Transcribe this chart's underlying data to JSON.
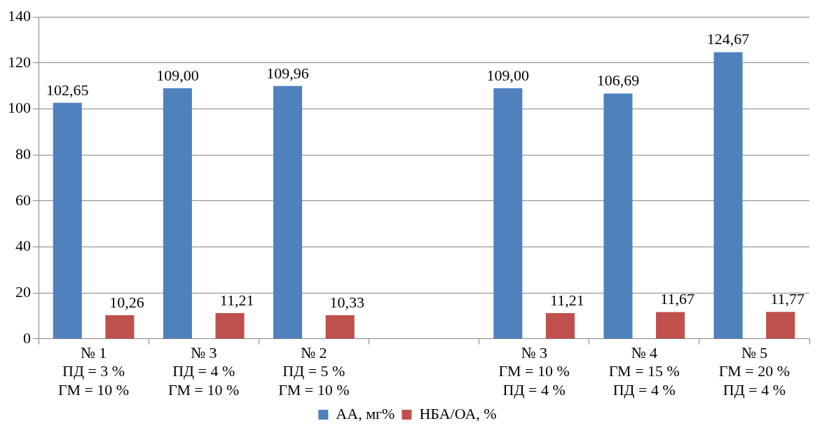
{
  "chart_data": {
    "type": "bar",
    "categories": [
      "№ 1\nПД = 3 %\nГМ = 10 %",
      "№ 3\nПД = 4 %\nГМ = 10 %",
      "№ 2\nПД = 5 %\nГМ = 10 %",
      null,
      "№ 3\nГМ = 10 %\nПД = 4 %",
      "№ 4\nГМ = 15 %\nПД = 4 %",
      "№ 5\nГМ = 20 %\nПД = 4 %"
    ],
    "series": [
      {
        "name": "АА, мг%",
        "color": "#4f81bd",
        "values": [
          102.65,
          109.0,
          109.96,
          null,
          109.0,
          106.69,
          124.67
        ],
        "value_labels": [
          "102,65",
          "109,00",
          "109,96",
          null,
          "109,00",
          "106,69",
          "124,67"
        ]
      },
      {
        "name": "НБА/ОА, %",
        "color": "#c0504d",
        "values": [
          10.26,
          11.21,
          10.33,
          null,
          11.21,
          11.67,
          11.77
        ],
        "value_labels": [
          "10,26",
          "11,21",
          "10,33",
          null,
          "11,21",
          "11,67",
          "11,77"
        ]
      }
    ],
    "ylim": [
      0,
      140
    ],
    "yticks": [
      0,
      20,
      40,
      60,
      80,
      100,
      120,
      140
    ],
    "grid": "y",
    "legend": "bottom"
  }
}
